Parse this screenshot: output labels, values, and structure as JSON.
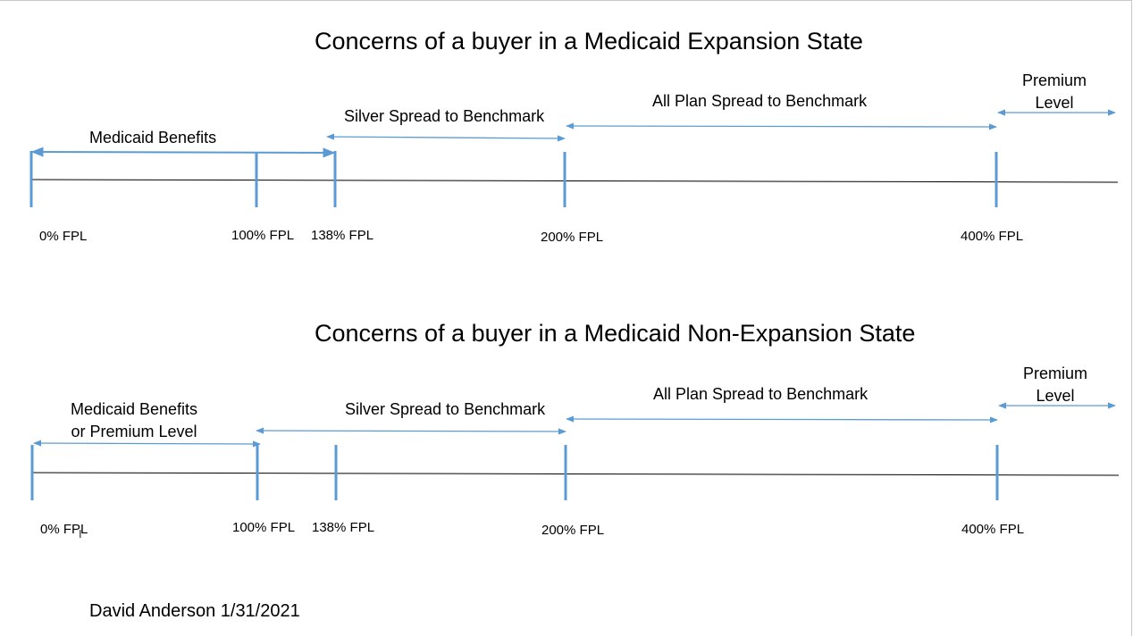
{
  "diagrams": [
    {
      "title": "Concerns of a buyer in a Medicaid Expansion State",
      "ticks": [
        "0% FPL",
        "100% FPL",
        "138% FPL",
        "200% FPL",
        "400% FPL"
      ],
      "ranges": {
        "r1": "Medicaid Benefits",
        "r2": "Silver Spread to Benchmark",
        "r3": "All Plan Spread to Benchmark",
        "r4_line1": "Premium",
        "r4_line2": "Level"
      }
    },
    {
      "title": "Concerns of a buyer in a Medicaid Non-Expansion State",
      "ticks": [
        "0% FPL",
        "100% FPL",
        "138% FPL",
        "200% FPL",
        "400% FPL"
      ],
      "ranges": {
        "r1_line1": "Medicaid Benefits",
        "r1_line2": "or Premium Level",
        "r2": "Silver Spread to Benchmark",
        "r3": "All Plan Spread to Benchmark",
        "r4_line1": "Premium",
        "r4_line2": "Level"
      }
    }
  ],
  "footer": "David Anderson 1/31/2021",
  "colors": {
    "accent": "#5B9BD5",
    "axis": "#000000"
  }
}
